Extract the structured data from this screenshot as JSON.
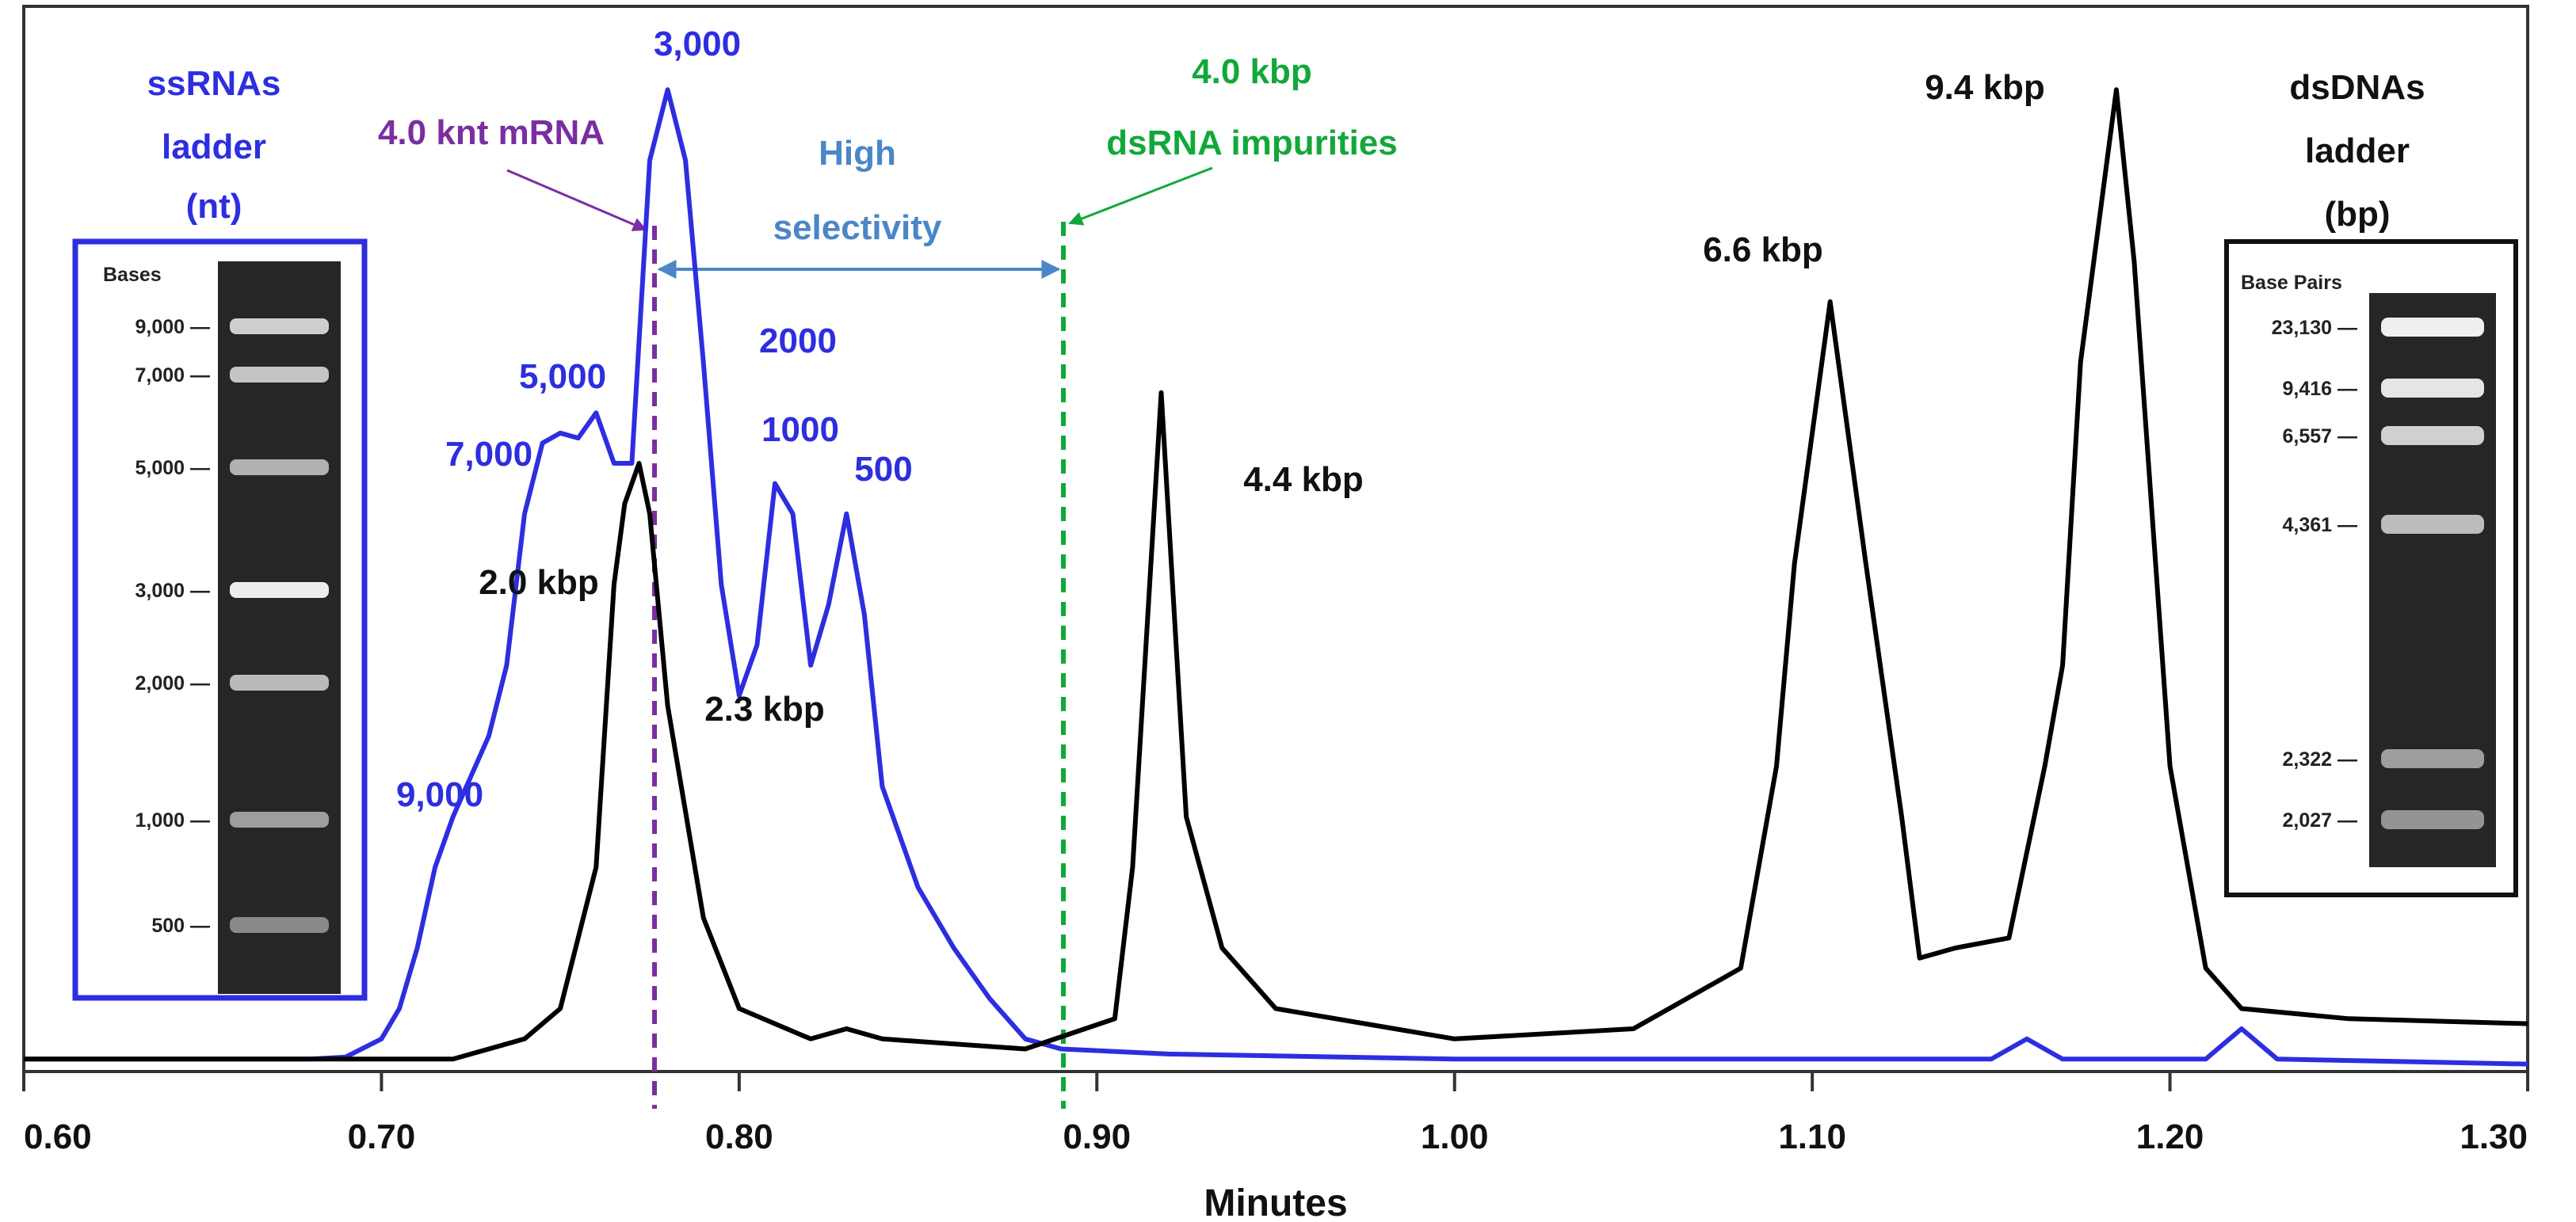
{
  "chart_data": {
    "type": "line",
    "title": "",
    "xlabel": "Minutes",
    "ylabel": "",
    "xlim": [
      0.6,
      1.3
    ],
    "ylim": [
      0,
      1
    ],
    "grid": false,
    "x_ticks": [
      "0.60",
      "0.70",
      "0.80",
      "0.90",
      "1.00",
      "1.10",
      "1.20",
      "1.30"
    ],
    "series": [
      {
        "name": "ssRNA ladder",
        "color": "#2d2ee0",
        "points": [
          [
            0.6,
            0.01
          ],
          [
            0.68,
            0.01
          ],
          [
            0.69,
            0.012
          ],
          [
            0.7,
            0.03
          ],
          [
            0.705,
            0.06
          ],
          [
            0.71,
            0.12
          ],
          [
            0.715,
            0.2
          ],
          [
            0.72,
            0.25
          ],
          [
            0.725,
            0.29
          ],
          [
            0.73,
            0.33
          ],
          [
            0.735,
            0.4
          ],
          [
            0.74,
            0.55
          ],
          [
            0.745,
            0.62
          ],
          [
            0.75,
            0.63
          ],
          [
            0.755,
            0.625
          ],
          [
            0.76,
            0.65
          ],
          [
            0.765,
            0.6
          ],
          [
            0.77,
            0.6
          ],
          [
            0.775,
            0.9
          ],
          [
            0.78,
            0.97
          ],
          [
            0.785,
            0.9
          ],
          [
            0.79,
            0.7
          ],
          [
            0.795,
            0.48
          ],
          [
            0.8,
            0.37
          ],
          [
            0.805,
            0.42
          ],
          [
            0.81,
            0.58
          ],
          [
            0.815,
            0.55
          ],
          [
            0.82,
            0.4
          ],
          [
            0.825,
            0.46
          ],
          [
            0.83,
            0.55
          ],
          [
            0.835,
            0.45
          ],
          [
            0.84,
            0.28
          ],
          [
            0.85,
            0.18
          ],
          [
            0.86,
            0.12
          ],
          [
            0.87,
            0.07
          ],
          [
            0.88,
            0.03
          ],
          [
            0.89,
            0.02
          ],
          [
            0.92,
            0.015
          ],
          [
            1.0,
            0.01
          ],
          [
            1.15,
            0.01
          ],
          [
            1.16,
            0.03
          ],
          [
            1.17,
            0.01
          ],
          [
            1.21,
            0.01
          ],
          [
            1.22,
            0.04
          ],
          [
            1.23,
            0.01
          ],
          [
            1.3,
            0.005
          ]
        ]
      },
      {
        "name": "dsDNA ladder",
        "color": "#000000",
        "points": [
          [
            0.6,
            0.01
          ],
          [
            0.72,
            0.01
          ],
          [
            0.74,
            0.03
          ],
          [
            0.75,
            0.06
          ],
          [
            0.76,
            0.2
          ],
          [
            0.765,
            0.48
          ],
          [
            0.768,
            0.56
          ],
          [
            0.772,
            0.6
          ],
          [
            0.775,
            0.55
          ],
          [
            0.78,
            0.36
          ],
          [
            0.79,
            0.15
          ],
          [
            0.8,
            0.06
          ],
          [
            0.82,
            0.03
          ],
          [
            0.83,
            0.04
          ],
          [
            0.84,
            0.03
          ],
          [
            0.88,
            0.02
          ],
          [
            0.905,
            0.05
          ],
          [
            0.91,
            0.2
          ],
          [
            0.918,
            0.67
          ],
          [
            0.925,
            0.25
          ],
          [
            0.935,
            0.12
          ],
          [
            0.95,
            0.06
          ],
          [
            1.0,
            0.03
          ],
          [
            1.05,
            0.04
          ],
          [
            1.08,
            0.1
          ],
          [
            1.09,
            0.3
          ],
          [
            1.095,
            0.5
          ],
          [
            1.105,
            0.76
          ],
          [
            1.115,
            0.5
          ],
          [
            1.125,
            0.25
          ],
          [
            1.13,
            0.11
          ],
          [
            1.14,
            0.12
          ],
          [
            1.155,
            0.13
          ],
          [
            1.165,
            0.3
          ],
          [
            1.17,
            0.4
          ],
          [
            1.175,
            0.7
          ],
          [
            1.185,
            0.97
          ],
          [
            1.19,
            0.8
          ],
          [
            1.2,
            0.3
          ],
          [
            1.21,
            0.1
          ],
          [
            1.22,
            0.06
          ],
          [
            1.25,
            0.05
          ],
          [
            1.3,
            0.045
          ]
        ]
      }
    ],
    "vertical_markers": [
      {
        "x": 0.77,
        "color": "#7a2ea0",
        "name": "4.0 knt mRNA"
      },
      {
        "x": 0.888,
        "color": "#11a83a",
        "name": "4.0 kbp dsRNA impurities"
      }
    ],
    "peak_labels_ssRNA": [
      "3,000",
      "5,000",
      "7,000",
      "2000",
      "1000",
      "500",
      "9,000"
    ],
    "peak_labels_dsDNA": [
      "2.0 kbp",
      "2.3 kbp",
      "4.4 kbp",
      "6.6 kbp",
      "9.4 kbp"
    ],
    "annotations": {
      "ssrna_ladder": [
        "ssRNAs",
        "ladder",
        "(nt)"
      ],
      "dsdna_ladder": [
        "dsDNAs",
        "ladder",
        "(bp)"
      ],
      "mrna": "4.0 knt mRNA",
      "selectivity": [
        "High",
        "selectivity"
      ],
      "dsrna": [
        "4.0 kbp",
        "dsRNA impurities"
      ]
    },
    "gel_left": {
      "header": "Bases",
      "ticks": [
        "9,000",
        "7,000",
        "5,000",
        "3,000",
        "2,000",
        "1,000",
        "500"
      ]
    },
    "gel_right": {
      "header": "Base Pairs",
      "ticks": [
        "23,130",
        "9,416",
        "6,557",
        "4,361",
        "2,322",
        "2,027"
      ]
    },
    "colors": {
      "ssrna": "#2d2ee0",
      "dsdna": "#000000",
      "mrna": "#7a2ea0",
      "dsrna": "#11a83a",
      "selectivity": "#4a86c8"
    }
  }
}
